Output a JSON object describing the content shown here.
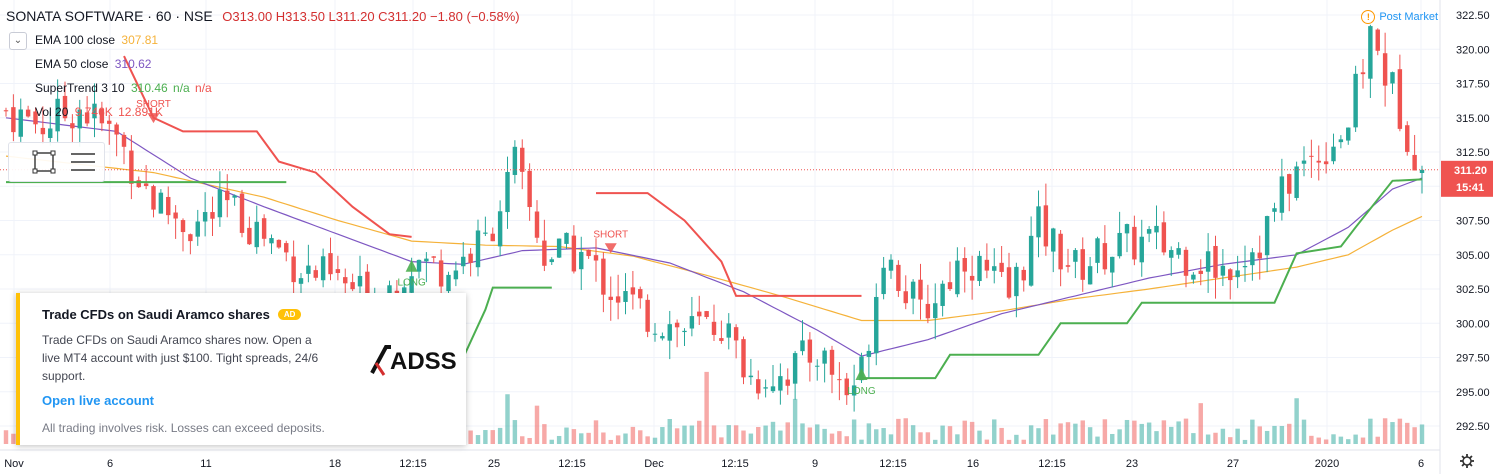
{
  "header": {
    "title": "SONATA SOFTWARE · 60 · NSE",
    "ohlc": "O313.00 H313.50 L311.20 C311.20 −1.80 (−0.58%)",
    "market_status": "Post Market"
  },
  "indicators": [
    {
      "label": "EMA 100 close",
      "value": "307.81",
      "color": "#f5b23a"
    },
    {
      "label": "EMA 50 close",
      "value": "310.62",
      "color": "#7e57c2"
    },
    {
      "label": "SuperTrend 3 10",
      "value": "310.46",
      "extra1": "n/a",
      "extra2": "n/a",
      "color": "#4caf50"
    },
    {
      "label": "Vol 20",
      "value": "9.746K",
      "value2": "12.891K",
      "color": "#ef5350"
    }
  ],
  "ad": {
    "title": "Trade CFDs on Saudi Aramco shares",
    "badge": "AD",
    "body": "Trade CFDs on Saudi Aramco shares now. Open a live MT4 account with just $100. Tight spreads, 24/6 support.",
    "link": "Open live account",
    "disclaimer": "All trading involves risk. Losses can exceed deposits.",
    "logo": "ADSS"
  },
  "chart_data": {
    "type": "candlestick",
    "symbol": "SONATA SOFTWARE",
    "interval": "60",
    "exchange": "NSE",
    "last_price": "311.20",
    "countdown": "15:41",
    "y_range": [
      291.5,
      322.9
    ],
    "y_ticks": [
      "322.50",
      "320.00",
      "317.50",
      "315.00",
      "312.50",
      "310.00",
      "307.50",
      "305.00",
      "302.50",
      "300.00",
      "297.50",
      "295.00",
      "292.50"
    ],
    "x_ticks": [
      "Nov",
      "6",
      "11",
      "18",
      "12:15",
      "25",
      "12:15",
      "Dec",
      "12:15",
      "9",
      "12:15",
      "16",
      "12:15",
      "23",
      "27",
      "2020",
      "6"
    ],
    "signals": [
      {
        "label": "SHORT",
        "x_label": "6",
        "price": 314.9,
        "color": "#ef5350"
      },
      {
        "label": "LONG",
        "x_label": "25",
        "price": 304.2,
        "color": "#4caf50"
      },
      {
        "label": "SHORT",
        "x_label": "Dec",
        "price": 305.4,
        "color": "#ef5350"
      },
      {
        "label": "LONG",
        "x_label": "16",
        "price": 296.3,
        "color": "#4caf50"
      }
    ],
    "supertrend_up": [
      {
        "segment": 1,
        "points": [
          [
            0,
            310.3
          ],
          [
            38,
            310.3
          ]
        ]
      },
      {
        "segment": 2,
        "points": [
          [
            55,
            297.5
          ],
          [
            62,
            297.5
          ],
          [
            65,
            301.0
          ],
          [
            66,
            302.6
          ],
          [
            74,
            302.6
          ]
        ]
      },
      {
        "segment": 3,
        "points": [
          [
            116,
            296.0
          ],
          [
            126,
            296.0
          ],
          [
            128,
            297.7
          ],
          [
            140,
            297.7
          ],
          [
            143,
            300.0
          ],
          [
            152,
            300.0
          ],
          [
            154,
            301.5
          ],
          [
            172,
            301.5
          ],
          [
            175,
            305.1
          ],
          [
            181,
            305.6
          ],
          [
            183,
            307.0
          ],
          [
            188,
            310.4
          ],
          [
            192,
            310.5
          ]
        ]
      }
    ],
    "supertrend_down": [
      {
        "segment": 1,
        "points": [
          [
            16,
            319.5
          ],
          [
            20,
            315.0
          ],
          [
            24,
            314.0
          ],
          [
            34,
            314.0
          ],
          [
            37,
            311.8
          ],
          [
            42,
            311.0
          ],
          [
            47,
            308.5
          ],
          [
            52,
            306.5
          ],
          [
            55,
            306.3
          ]
        ]
      },
      {
        "segment": 2,
        "points": [
          [
            80,
            309.5
          ],
          [
            87,
            309.5
          ],
          [
            92,
            307.5
          ],
          [
            97,
            304.5
          ],
          [
            99,
            302.0
          ],
          [
            116,
            302.0
          ]
        ]
      }
    ],
    "ema50": [
      [
        0,
        315.0
      ],
      [
        15,
        314.0
      ],
      [
        25,
        310.6
      ],
      [
        35,
        308.5
      ],
      [
        45,
        306.5
      ],
      [
        55,
        304.5
      ],
      [
        62,
        304.3
      ],
      [
        70,
        305.3
      ],
      [
        80,
        305.5
      ],
      [
        90,
        304.4
      ],
      [
        100,
        302.3
      ],
      [
        110,
        299.5
      ],
      [
        116,
        297.6
      ],
      [
        125,
        298.8
      ],
      [
        135,
        300.7
      ],
      [
        145,
        302.0
      ],
      [
        155,
        303.3
      ],
      [
        165,
        304.3
      ],
      [
        175,
        305.0
      ],
      [
        182,
        307.0
      ],
      [
        188,
        309.8
      ],
      [
        192,
        310.6
      ]
    ],
    "ema100": [
      [
        0,
        312.2
      ],
      [
        20,
        311.0
      ],
      [
        35,
        309.2
      ],
      [
        45,
        307.5
      ],
      [
        55,
        306.0
      ],
      [
        65,
        305.7
      ],
      [
        75,
        305.6
      ],
      [
        85,
        304.9
      ],
      [
        95,
        303.5
      ],
      [
        105,
        302.0
      ],
      [
        116,
        300.2
      ],
      [
        125,
        300.2
      ],
      [
        135,
        300.9
      ],
      [
        145,
        301.8
      ],
      [
        155,
        302.5
      ],
      [
        165,
        303.3
      ],
      [
        175,
        304.1
      ],
      [
        182,
        305.0
      ],
      [
        188,
        306.8
      ],
      [
        192,
        307.8
      ]
    ],
    "price_path": [
      [
        0,
        315.5
      ],
      [
        5,
        314.5
      ],
      [
        10,
        315.8
      ],
      [
        15,
        313.5
      ],
      [
        20,
        309.0
      ],
      [
        25,
        307.0
      ],
      [
        30,
        308.5
      ],
      [
        35,
        306.5
      ],
      [
        40,
        304.0
      ],
      [
        45,
        303.0
      ],
      [
        50,
        301.5
      ],
      [
        55,
        304.5
      ],
      [
        60,
        304.0
      ],
      [
        65,
        306.0
      ],
      [
        69,
        311.5
      ],
      [
        73,
        305.0
      ],
      [
        78,
        305.0
      ],
      [
        82,
        302.5
      ],
      [
        87,
        300.5
      ],
      [
        92,
        299.5
      ],
      [
        97,
        300.0
      ],
      [
        101,
        296.0
      ],
      [
        106,
        296.5
      ],
      [
        110,
        298.0
      ],
      [
        114,
        295.0
      ],
      [
        116,
        296.5
      ],
      [
        119,
        305.5
      ],
      [
        124,
        300.5
      ],
      [
        130,
        305.0
      ],
      [
        136,
        302.0
      ],
      [
        140,
        307.0
      ],
      [
        145,
        304.0
      ],
      [
        150,
        305.5
      ],
      [
        155,
        306.0
      ],
      [
        160,
        305.0
      ],
      [
        165,
        304.0
      ],
      [
        170,
        306.0
      ],
      [
        174,
        310.5
      ],
      [
        178,
        312.5
      ],
      [
        182,
        314.5
      ],
      [
        185,
        321.0
      ],
      [
        188,
        317.0
      ],
      [
        192,
        311.2
      ]
    ],
    "bars": 193
  }
}
